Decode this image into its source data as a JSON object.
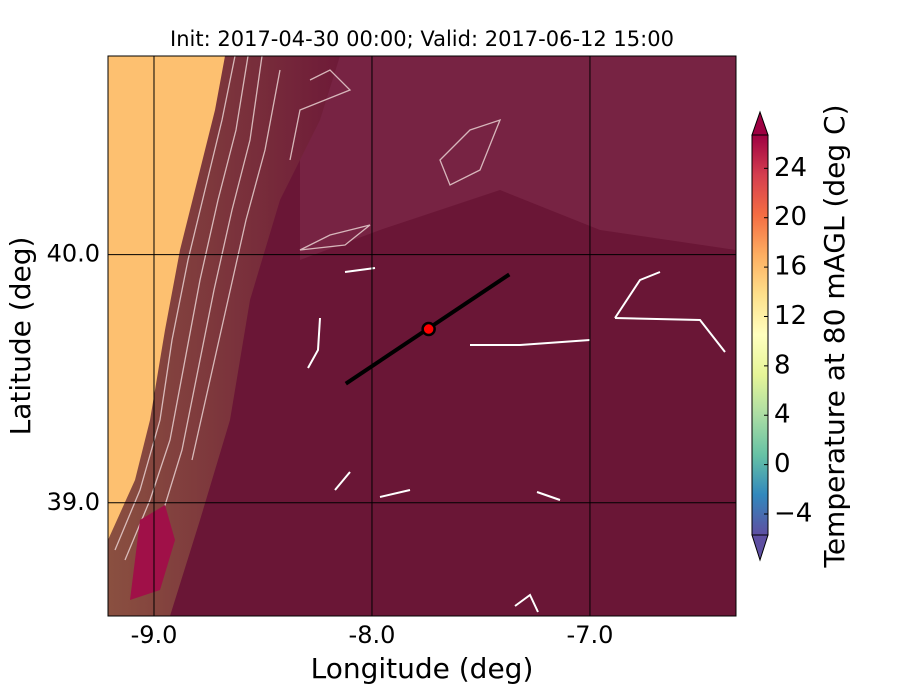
{
  "chart_data": {
    "type": "map",
    "title": "Init: 2017-04-30 00:00; Valid: 2017-06-12 15:00",
    "xlabel": "Longitude (deg)",
    "ylabel": "Latitude (deg)",
    "xlim": [
      -9.211,
      -6.33
    ],
    "ylim": [
      38.544,
      40.8
    ],
    "xticks": [
      {
        "value": -9,
        "label": "-9.0"
      },
      {
        "value": -8,
        "label": "-8.0"
      },
      {
        "value": -7,
        "label": "-7.0"
      }
    ],
    "yticks": [
      {
        "value": 39,
        "label": "39.0"
      },
      {
        "value": 40,
        "label": "40.0"
      }
    ],
    "grid": true,
    "colorbar": {
      "label": "Temperature at 80 mAGL (deg C)",
      "clim": [
        -5.7,
        26.7
      ],
      "ticks": [
        {
          "value": -4,
          "label": "−4"
        },
        0,
        4,
        8,
        12,
        16,
        20,
        24
      ],
      "colors": [
        "#5e4fa2",
        "#3288bd",
        "#66c2a5",
        "#abdda4",
        "#e6f598",
        "#ffffbf",
        "#fee08b",
        "#fdae61",
        "#f46d43",
        "#d53e4f",
        "#9e0142"
      ]
    },
    "point": {
      "lon": -7.74,
      "lat": 39.7,
      "color": "#ff0000"
    },
    "section": {
      "lon": [
        -8.12,
        -7.37
      ],
      "lat": [
        39.48,
        39.92
      ],
      "color": "#000000"
    }
  }
}
